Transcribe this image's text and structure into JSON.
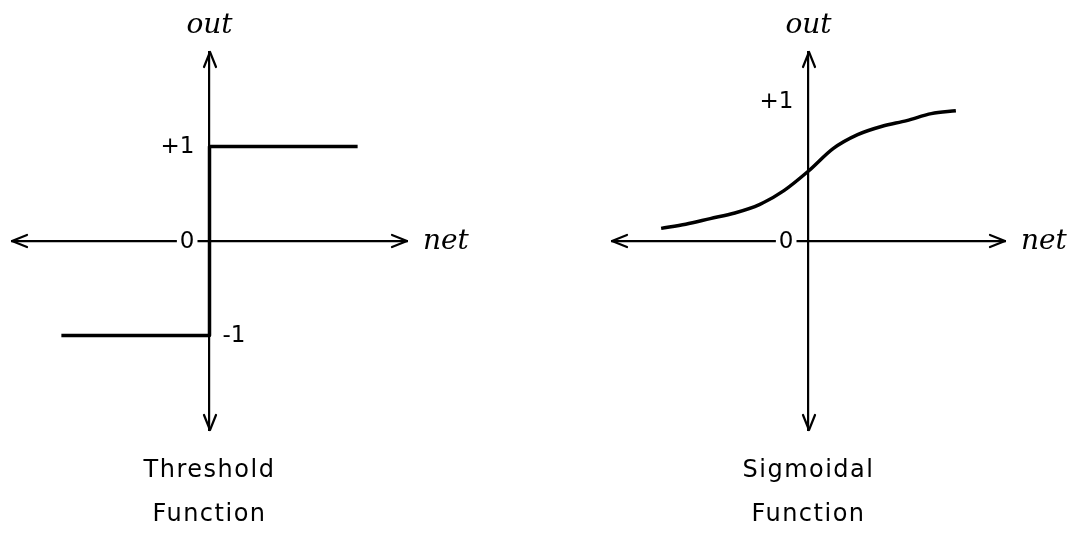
{
  "chart_data": [
    {
      "type": "step",
      "title": "Threshold Function",
      "xlabel": "net",
      "ylabel": "out",
      "categories": [
        null,
        null,
        null,
        null,
        null,
        null,
        null,
        null,
        null
      ],
      "values": [
        null,
        -1,
        -1,
        -1,
        1,
        1,
        1,
        1,
        null
      ],
      "color": "#000000",
      "ylim": [
        -2,
        2
      ],
      "yticks": [
        {
          "value": 1,
          "label": "+1"
        },
        0
      ],
      "annotations": [
        "-1"
      ],
      "tick_labels": "y",
      "marker": "none"
    },
    {
      "type": "line",
      "title": "Sigmoidal Function",
      "xlabel": "net",
      "ylabel": "out",
      "categories": [
        null,
        null,
        null,
        null,
        null,
        null,
        null,
        null,
        null,
        null,
        null,
        null,
        null,
        null,
        null,
        null,
        null
      ],
      "values": [
        null,
        null,
        0.09,
        0.12,
        0.16,
        0.2,
        0.26,
        0.36,
        0.5,
        0.66,
        0.76,
        0.82,
        0.86,
        0.91,
        0.93,
        null,
        null
      ],
      "color": "#000000",
      "ylim": [
        -1.35,
        1.35
      ],
      "yticks": [
        {
          "value": 1,
          "label": "+1"
        },
        0
      ],
      "tick_labels": "y",
      "marker": "none"
    }
  ]
}
